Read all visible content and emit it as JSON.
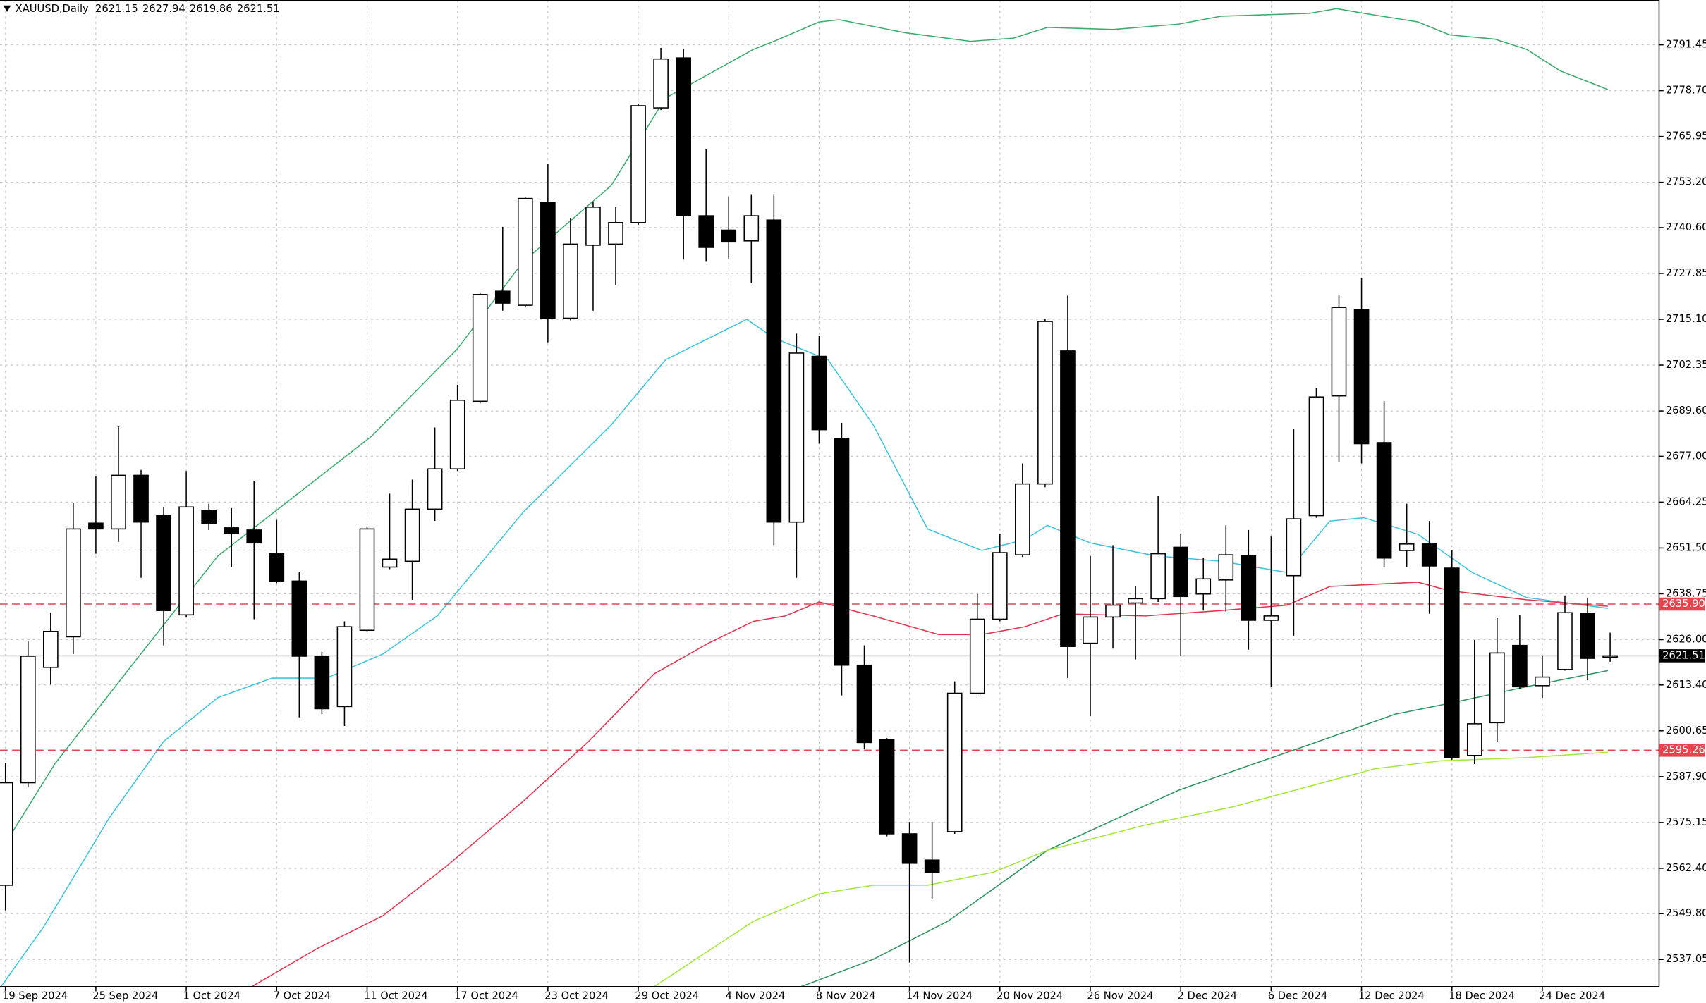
{
  "chart_data": {
    "type": "candlestick",
    "title": "XAUUSD,Daily",
    "header_ohlc": [
      2621.15,
      2627.94,
      2619.86,
      2621.51
    ],
    "categories": [
      "19 Sep 2024",
      null,
      null,
      null,
      "25 Sep 2024",
      null,
      null,
      null,
      "1 Oct 2024",
      null,
      null,
      null,
      "7 Oct 2024",
      null,
      null,
      null,
      "11 Oct 2024",
      null,
      null,
      null,
      "17 Oct 2024",
      null,
      null,
      null,
      "23 Oct 2024",
      null,
      null,
      null,
      "29 Oct 2024",
      null,
      null,
      null,
      "4 Nov 2024",
      null,
      null,
      null,
      "8 Nov 2024",
      null,
      null,
      null,
      "14 Nov 2024",
      null,
      null,
      null,
      "20 Nov 2024",
      null,
      null,
      null,
      "26 Nov 2024",
      null,
      null,
      null,
      "2 Dec 2024",
      null,
      null,
      null,
      "6 Dec 2024",
      null,
      null,
      null,
      "12 Dec 2024",
      null,
      null,
      null,
      "18 Dec 2024",
      null,
      null,
      null,
      "24 Dec 2024",
      null,
      null,
      null
    ],
    "open": [
      2557.7,
      2586.2,
      2618.3,
      2626.8,
      2658.4,
      2656.8,
      2671.7,
      2660.5,
      2632.9,
      2662.0,
      2657.1,
      2656.5,
      2649.9,
      2642.3,
      2621.4,
      2607.4,
      2628.6,
      2646.2,
      2647.8,
      2662.3,
      2673.5,
      2692.3,
      2722.9,
      2719.0,
      2747.5,
      2715.4,
      2735.7,
      2736.0,
      2742.0,
      2773.9,
      2787.8,
      2743.9,
      2739.9,
      2736.9,
      2742.7,
      2658.7,
      2704.8,
      2682.0,
      2618.9,
      2598.3,
      2572.0,
      2564.7,
      2572.6,
      2611.1,
      2631.7,
      2649.6,
      2669.3,
      2706.3,
      2625.0,
      2632.3,
      2636.2,
      2637.4,
      2651.7,
      2638.7,
      2642.6,
      2649.3,
      2631.4,
      2643.8,
      2660.5,
      2693.8,
      2717.8,
      2680.8,
      2650.8,
      2652.6,
      2645.9,
      2593.8,
      2602.9,
      2624.4,
      2613.2,
      2617.7,
      2633.2,
      2621.15
    ],
    "high": [
      2591.7,
      2625.6,
      2633.5,
      2664.1,
      2671.4,
      2685.3,
      2673.2,
      2662.9,
      2672.9,
      2663.8,
      2662.6,
      2670.2,
      2659.3,
      2644.7,
      2622.6,
      2631.1,
      2657.5,
      2666.6,
      2670.5,
      2685.0,
      2696.9,
      2722.6,
      2740.8,
      2749.0,
      2758.4,
      2743.3,
      2747.8,
      2746.3,
      2775.1,
      2790.6,
      2790.3,
      2762.4,
      2749.3,
      2749.9,
      2749.9,
      2711.1,
      2710.5,
      2686.3,
      2624.4,
      2598.6,
      2575.3,
      2575.3,
      2614.4,
      2638.7,
      2655.3,
      2675.0,
      2715.1,
      2721.7,
      2649.3,
      2652.3,
      2640.8,
      2665.9,
      2655.3,
      2648.7,
      2657.8,
      2656.5,
      2654.7,
      2684.7,
      2696.0,
      2722.0,
      2726.6,
      2692.3,
      2663.8,
      2659.0,
      2650.8,
      2625.9,
      2632.0,
      2632.9,
      2621.4,
      2638.3,
      2637.7,
      2627.94
    ],
    "low": [
      2550.7,
      2585.0,
      2613.5,
      2622.0,
      2649.9,
      2653.2,
      2643.2,
      2624.4,
      2632.3,
      2656.5,
      2646.2,
      2631.7,
      2641.7,
      2604.4,
      2605.3,
      2602.0,
      2628.3,
      2645.6,
      2637.1,
      2659.0,
      2672.9,
      2691.7,
      2717.5,
      2718.4,
      2708.7,
      2714.8,
      2717.5,
      2724.5,
      2741.4,
      2773.3,
      2731.7,
      2731.1,
      2732.0,
      2725.1,
      2652.3,
      2643.2,
      2680.5,
      2610.5,
      2595.6,
      2571.3,
      2536.2,
      2553.8,
      2572.0,
      2610.8,
      2631.1,
      2649.0,
      2668.4,
      2615.3,
      2604.7,
      2623.5,
      2620.5,
      2636.5,
      2621.4,
      2634.1,
      2633.8,
      2623.2,
      2612.9,
      2627.1,
      2659.9,
      2675.3,
      2675.0,
      2646.2,
      2646.2,
      2633.2,
      2592.6,
      2591.4,
      2597.7,
      2612.3,
      2609.8,
      2617.4,
      2614.7,
      2619.86
    ],
    "close": [
      2586.2,
      2621.4,
      2628.3,
      2656.8,
      2656.8,
      2671.7,
      2658.7,
      2634.1,
      2662.9,
      2658.4,
      2655.6,
      2652.9,
      2642.3,
      2621.4,
      2606.8,
      2629.6,
      2656.8,
      2648.4,
      2662.3,
      2673.5,
      2692.6,
      2722.0,
      2719.6,
      2748.7,
      2715.4,
      2736.0,
      2746.3,
      2742.0,
      2774.5,
      2787.5,
      2743.9,
      2735.1,
      2736.6,
      2743.9,
      2658.7,
      2705.7,
      2684.4,
      2618.9,
      2597.4,
      2572.0,
      2563.8,
      2561.3,
      2611.1,
      2631.7,
      2650.2,
      2669.3,
      2714.5,
      2624.1,
      2632.3,
      2635.6,
      2637.4,
      2649.9,
      2638.0,
      2642.9,
      2649.6,
      2631.4,
      2632.6,
      2659.6,
      2693.5,
      2718.4,
      2680.5,
      2648.7,
      2652.6,
      2646.5,
      2593.2,
      2602.6,
      2622.3,
      2612.9,
      2615.6,
      2633.5,
      2620.8,
      2621.51
    ],
    "overlays": [
      {
        "color": "#3cab6e",
        "x": [
          -0.2,
          2.2,
          5.6,
          9.4,
          12.8,
          16.2,
          20.0,
          22.9,
          26.8,
          29.2,
          33.1,
          34.0,
          36.0,
          36.9,
          39.8,
          42.7,
          44.6,
          46.1,
          49.0,
          51.9,
          53.8,
          57.7,
          58.9,
          60.1,
          62.5,
          63.9,
          65.9,
          67.3,
          68.8,
          70.9
        ],
        "values": [
          2567.4,
          2591.6,
          2618.9,
          2649.3,
          2665.9,
          2682.6,
          2706.9,
          2731.1,
          2752.3,
          2776.6,
          2790.2,
          2792.4,
          2797.8,
          2798.4,
          2794.8,
          2792.4,
          2793.3,
          2796.3,
          2795.7,
          2797.2,
          2799.4,
          2800.2,
          2801.5,
          2800.2,
          2797.8,
          2794.2,
          2793.0,
          2790.2,
          2784.2,
          2779.0
        ]
      },
      {
        "color": "#40c4dc",
        "x": [
          -0.2,
          1.7,
          4.6,
          7.0,
          9.4,
          11.8,
          14.2,
          16.7,
          19.1,
          22.9,
          26.8,
          29.2,
          32.8,
          34.0,
          36.4,
          38.4,
          40.8,
          43.2,
          45.1,
          46.1,
          48.0,
          50.9,
          53.8,
          56.7,
          58.6,
          60.1,
          62.5,
          64.9,
          67.3,
          70.9
        ],
        "values": [
          2529.5,
          2546.2,
          2576.5,
          2597.7,
          2609.9,
          2615.3,
          2615.3,
          2622.0,
          2632.6,
          2661.4,
          2685.7,
          2703.8,
          2715.1,
          2709.9,
          2703.8,
          2685.7,
          2656.8,
          2650.8,
          2653.8,
          2657.8,
          2652.9,
          2649.3,
          2647.8,
          2644.7,
          2659.0,
          2659.9,
          2655.3,
          2644.7,
          2637.7,
          2634.7
        ]
      },
      {
        "color": "#e23650",
        "x": [
          10.9,
          13.8,
          16.7,
          19.5,
          22.9,
          25.8,
          28.7,
          31.1,
          33.1,
          34.5,
          36.0,
          38.4,
          41.3,
          43.2,
          45.1,
          46.8,
          50.4,
          53.8,
          56.7,
          58.6,
          62.5,
          63.9,
          67.3,
          70.9
        ],
        "values": [
          2529.5,
          2540.1,
          2549.2,
          2562.9,
          2581.0,
          2597.7,
          2616.5,
          2625.0,
          2631.1,
          2632.6,
          2636.5,
          2632.6,
          2627.4,
          2627.4,
          2629.6,
          2633.2,
          2632.6,
          2634.1,
          2635.6,
          2640.8,
          2642.0,
          2639.6,
          2637.1,
          2635.3
        ]
      },
      {
        "color": "#2f9461",
        "x": [
          35.2,
          38.4,
          41.7,
          46.1,
          51.9,
          55.3,
          57.7,
          61.5,
          63.9,
          67.3,
          70.9
        ],
        "values": [
          2529.5,
          2537.1,
          2547.7,
          2567.4,
          2584.1,
          2591.6,
          2596.8,
          2605.3,
          2608.3,
          2612.9,
          2617.4
        ]
      },
      {
        "color": "#a4e83a",
        "x": [
          28.7,
          33.1,
          36.0,
          38.4,
          40.8,
          43.7,
          46.1,
          50.4,
          54.3,
          60.6,
          63.5,
          67.3,
          70.9
        ],
        "values": [
          2529.5,
          2547.7,
          2555.3,
          2557.7,
          2557.7,
          2561.3,
          2567.4,
          2574.4,
          2579.5,
          2590.1,
          2592.3,
          2593.2,
          2594.7
        ]
      }
    ],
    "levels": [
      {
        "value": 2635.9,
        "label": "2635.90",
        "color": "#e8434f"
      },
      {
        "value": 2595.26,
        "color": "#e8434f"
      }
    ],
    "price_line": {
      "value": 2621.51,
      "color": "#c0c0c0"
    },
    "ylim": [
      2529.5,
      2803.9
    ],
    "yticks": [
      2791.45,
      {
        "value": 2778.7,
        "label": "2778.70"
      },
      2765.95,
      {
        "value": 2753.2,
        "label": "2753.20"
      },
      {
        "value": 2740.6,
        "label": "2740.60"
      },
      2727.85,
      {
        "value": 2715.1,
        "label": "2715.10"
      },
      2702.35,
      {
        "value": 2689.6,
        "label": "2689.60"
      },
      {
        "value": 2677,
        "label": "2677.00"
      },
      2664.25,
      {
        "value": 2651.5,
        "label": "2651.50"
      },
      2638.75,
      {
        "value": 2626,
        "label": "2626.00"
      },
      {
        "value": 2613.4,
        "label": "2613.40"
      },
      2600.65,
      {
        "value": 2587.9,
        "label": "2587.90"
      },
      2575.15,
      {
        "value": 2562.4,
        "label": "2562.40"
      },
      {
        "value": 2549.8,
        "label": "2549.80"
      },
      2537.05
    ],
    "grid": true
  }
}
